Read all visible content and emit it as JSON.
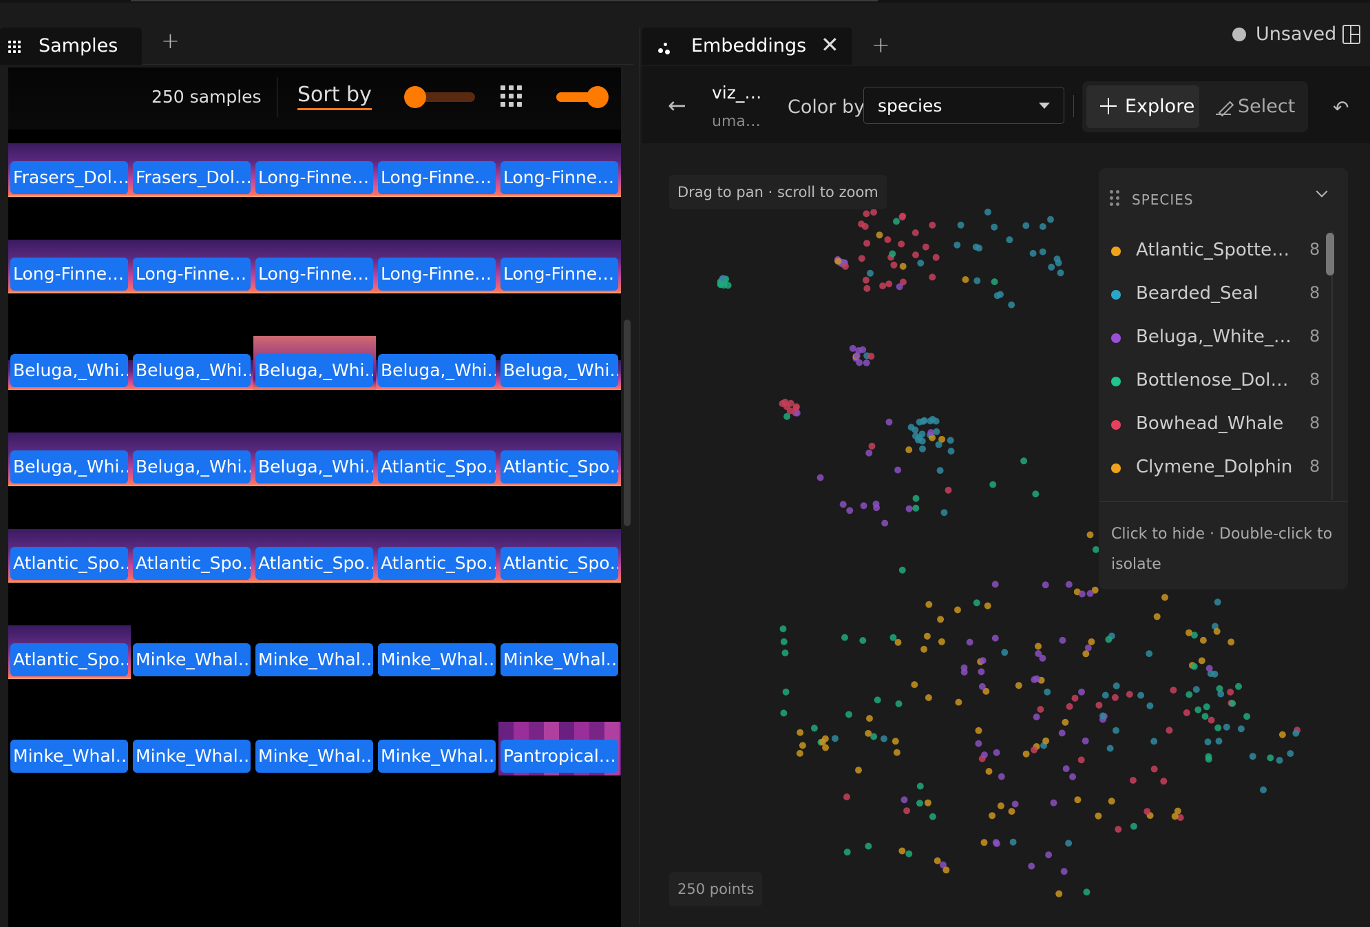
{
  "left_panel": {
    "tab_label": "Samples",
    "sample_count": "250 samples",
    "sort_label": "Sort by",
    "rows": [
      [
        "Frasers_Dol…",
        "Frasers_Dol…",
        "Long-Finne…",
        "Long-Finne…",
        "Long-Finne…"
      ],
      [
        "Long-Finne…",
        "Long-Finne…",
        "Long-Finne…",
        "Long-Finne…",
        "Long-Finne…"
      ],
      [
        "Beluga,_Whi…",
        "Beluga,_Whi…",
        "Beluga,_Whi…",
        "Beluga,_Whi…",
        "Beluga,_Whi…"
      ],
      [
        "Beluga,_Whi…",
        "Beluga,_Whi…",
        "Beluga,_Whi…",
        "Atlantic_Spo…",
        "Atlantic_Spo…"
      ],
      [
        "Atlantic_Spo…",
        "Atlantic_Spo…",
        "Atlantic_Spo…",
        "Atlantic_Spo…",
        "Atlantic_Spo…"
      ],
      [
        "Atlantic_Spo…",
        "Minke_Whal…",
        "Minke_Whal…",
        "Minke_Whal…",
        "Minke_Whal…"
      ],
      [
        "Minke_Whal…",
        "Minke_Whal…",
        "Minke_Whal…",
        "Minke_Whal…",
        "Pantropical…"
      ]
    ]
  },
  "right_panel": {
    "tab_label": "Embeddings",
    "status": "Unsaved",
    "viz_name": "viz_…",
    "viz_method": "uma…",
    "color_by_label": "Color by",
    "color_by_value": "species",
    "explore_label": "Explore",
    "select_label": "Select",
    "hint": "Drag to pan · scroll to zoom",
    "points_count": "250 points",
    "legend": {
      "title": "SPECIES",
      "items": [
        {
          "name": "Atlantic_Spotted_…",
          "count": "8",
          "color": "#f0a21c"
        },
        {
          "name": "Bearded_Seal",
          "count": "8",
          "color": "#2ba6c8"
        },
        {
          "name": "Beluga,_White_W…",
          "count": "8",
          "color": "#9a4fd8"
        },
        {
          "name": "Bottlenose_Dolphin",
          "count": "8",
          "color": "#1fc48e"
        },
        {
          "name": "Bowhead_Whale",
          "count": "8",
          "color": "#e8405c"
        },
        {
          "name": "Clymene_Dolphin",
          "count": "8",
          "color": "#f0a21c"
        }
      ],
      "footer": "Click to hide · Double-click to isolate"
    }
  }
}
